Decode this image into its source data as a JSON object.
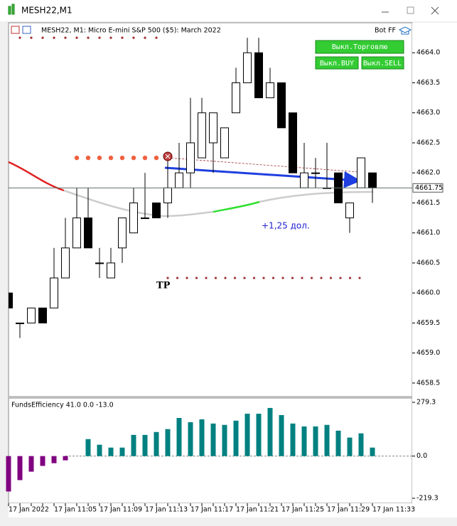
{
  "window": {
    "title": "MESH22,M1"
  },
  "chart_data": [
    {
      "type": "candlestick",
      "header": "MESH22, M1:  Micro E-mini S&P 500 ($5): March 2022",
      "bot_label": "Bot FF",
      "categories": [
        "17 Jan 2022",
        null,
        null,
        null,
        "17 Jan 11:05",
        null,
        null,
        null,
        "17 Jan 11:09",
        null,
        null,
        null,
        "17 Jan 11:13",
        null,
        null,
        null,
        "17 Jan 11:17",
        null,
        null,
        null,
        "17 Jan 11:21",
        null,
        null,
        null,
        "17 Jan 11:25",
        null,
        null,
        null,
        "17 Jan 11:29",
        null,
        null,
        null,
        "17 Jan 11:33"
      ],
      "open": [
        4660.0,
        4659.5,
        4659.5,
        4659.75,
        4659.75,
        4660.25,
        4660.75,
        4661.25,
        4660.5,
        4660.25,
        4660.75,
        4661.0,
        4661.25,
        4661.5,
        4661.5,
        4661.75,
        4662.0,
        4662.25,
        4662.5,
        4662.25,
        4663.0,
        4663.5,
        4664.0,
        4663.25,
        4663.5,
        4663.0,
        4661.75,
        4662.0,
        4661.75,
        4662.0,
        4661.25,
        4661.75,
        4662.0
      ],
      "high": [
        4660.0,
        4659.5,
        4659.75,
        4659.75,
        4660.75,
        4661.25,
        4661.75,
        4661.75,
        4660.75,
        4660.75,
        4661.25,
        4661.75,
        4662.0,
        4661.5,
        4662.25,
        4662.5,
        4663.25,
        4663.25,
        4663.0,
        4662.75,
        4663.75,
        4664.25,
        4664.25,
        4663.75,
        4663.5,
        4663.0,
        4662.5,
        4662.25,
        4662.5,
        4662.0,
        4661.5,
        4662.25,
        4662.0
      ],
      "low": [
        4659.75,
        4659.25,
        4659.5,
        4659.5,
        4659.75,
        4660.25,
        4660.75,
        4660.75,
        4660.25,
        4660.25,
        4660.5,
        4661.0,
        4661.25,
        4661.25,
        4661.25,
        4661.75,
        4661.75,
        4662.25,
        4662.0,
        4662.25,
        4663.0,
        4663.5,
        4663.25,
        4663.25,
        4662.75,
        4662.0,
        4661.75,
        4661.75,
        4661.75,
        4661.5,
        4661.0,
        4661.75,
        4661.5
      ],
      "close": [
        4659.75,
        4659.5,
        4659.75,
        4659.5,
        4660.25,
        4660.75,
        4661.25,
        4660.75,
        4660.5,
        4660.5,
        4661.25,
        4661.5,
        4661.25,
        4661.25,
        4661.75,
        4662.0,
        4662.5,
        4663.0,
        4663.0,
        4662.75,
        4663.5,
        4664.0,
        4663.25,
        4663.5,
        4662.75,
        4662.0,
        4662.0,
        4662.0,
        4661.75,
        4661.5,
        4661.5,
        4662.25,
        4661.75
      ],
      "ylim": [
        4658.25,
        4664.5
      ],
      "yticks": [
        {
          "value": 4664.0,
          "label": "4664.0"
        },
        4663.5,
        {
          "value": 4663.0,
          "label": "4663.0"
        },
        4662.5,
        {
          "value": 4662.0,
          "label": "4662.0"
        },
        4661.5,
        {
          "value": 4661.0,
          "label": "4661.0"
        },
        4660.5,
        {
          "value": 4660.0,
          "label": "4660.0"
        },
        4659.5,
        {
          "value": 4659.0,
          "label": "4659.0"
        },
        4658.5
      ],
      "current_price": 4661.75,
      "stop_level": 4664.25,
      "entry_level": 4662.25,
      "tp_level": 4660.25,
      "tp_label": "TP",
      "profit_label": "+1,25 дол.",
      "buttons": [
        "Выкл.Торговлю",
        "Выкл.BUY",
        "Выкл.SELL"
      ]
    },
    {
      "type": "bar",
      "label": "FundsEfficiency 41.0 0.0 -13.0",
      "values": [
        -184,
        -125,
        -81,
        -51,
        -37,
        -22,
        0,
        88,
        59,
        44,
        44,
        110,
        110,
        125,
        140,
        198,
        176,
        191,
        169,
        162,
        184,
        220,
        220,
        250,
        213,
        169,
        154,
        154,
        162,
        132,
        96,
        118,
        44
      ],
      "color": "#008080",
      "negative_color": "#800080",
      "ylim": [
        -219.3,
        279.3
      ],
      "yticks": [
        279.3,
        {
          "value": 0,
          "label": "0.0"
        },
        -219.3
      ]
    }
  ]
}
